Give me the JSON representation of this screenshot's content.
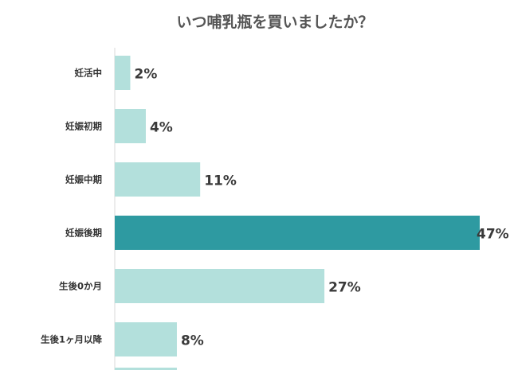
{
  "chart_data": {
    "type": "bar",
    "orientation": "horizontal",
    "title": "いつ哺乳瓶を買いましたか？",
    "categories": [
      "妊活中",
      "妊娠初期",
      "妊娠中期",
      "妊娠後期",
      "生後0か月",
      "生後1ヶ月以降"
    ],
    "values": [
      2,
      4,
      11,
      47,
      27,
      8
    ],
    "value_labels": [
      "2%",
      "4%",
      "11%",
      "47%",
      "27%",
      "8%"
    ],
    "xlim": [
      0,
      47
    ],
    "grid": false,
    "legend": "none",
    "highlight_index": 3,
    "colors": {
      "bar": "#b3e0dc",
      "highlight": "#2e9aa1",
      "axis": "#d9d9d9",
      "title": "#555555",
      "text": "#333333"
    }
  }
}
